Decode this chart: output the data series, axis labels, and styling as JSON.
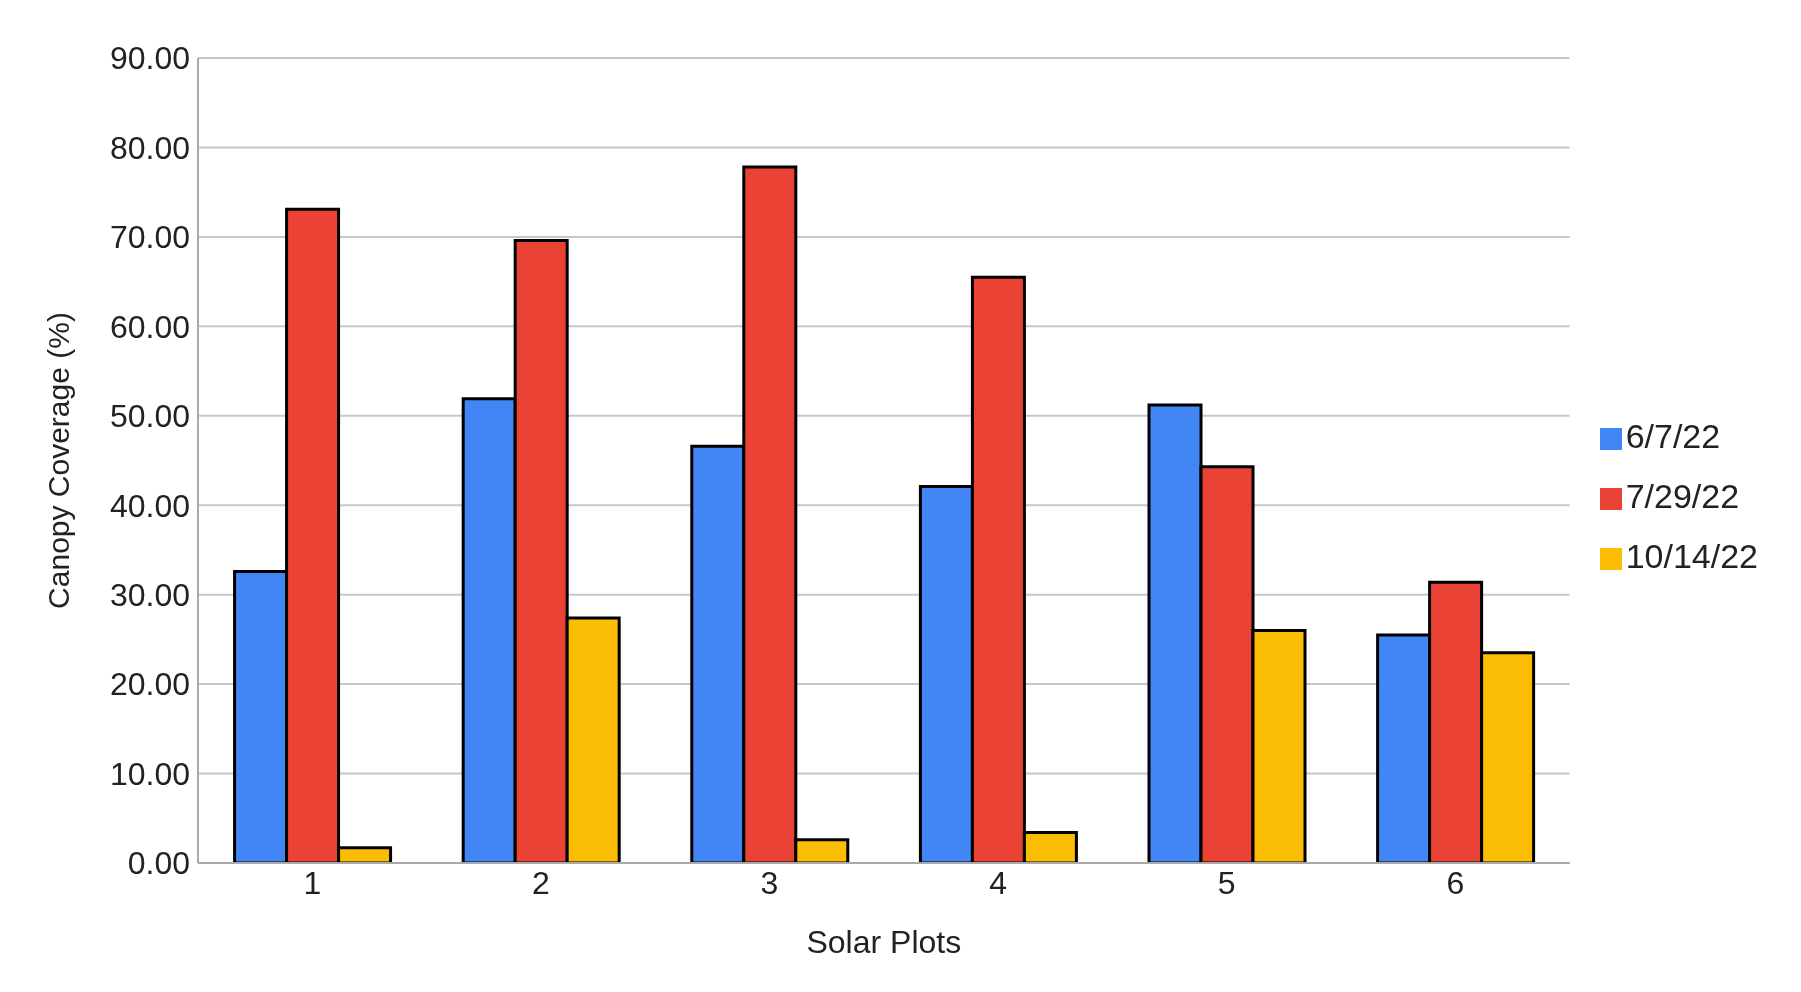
{
  "chart_data": {
    "type": "bar",
    "xlabel": "Solar Plots",
    "ylabel": "Canopy Coverage (%)",
    "categories": [
      "1",
      "2",
      "3",
      "4",
      "5",
      "6"
    ],
    "series": [
      {
        "name": "6/7/22",
        "color": "#4285f4",
        "values": [
          32.6,
          51.9,
          46.6,
          42.1,
          51.2,
          25.5
        ]
      },
      {
        "name": "7/29/22",
        "color": "#ea4335",
        "values": [
          73.1,
          69.6,
          77.8,
          65.5,
          44.3,
          31.4
        ]
      },
      {
        "name": "10/14/22",
        "color": "#fbbc04",
        "values": [
          1.7,
          27.4,
          2.6,
          3.4,
          26.0,
          23.5
        ]
      }
    ],
    "ylim": [
      0,
      90
    ],
    "yticks": [
      {
        "value": 0,
        "label": "0.00"
      },
      {
        "value": 10,
        "label": "10.00"
      },
      {
        "value": 20,
        "label": "20.00"
      },
      {
        "value": 30,
        "label": "30.00"
      },
      {
        "value": 40,
        "label": "40.00"
      },
      {
        "value": 50,
        "label": "50.00"
      },
      {
        "value": 60,
        "label": "60.00"
      },
      {
        "value": 70,
        "label": "70.00"
      },
      {
        "value": 80,
        "label": "80.00"
      },
      {
        "value": 90,
        "label": "90.00"
      }
    ],
    "grid": "y",
    "legend": "right"
  }
}
